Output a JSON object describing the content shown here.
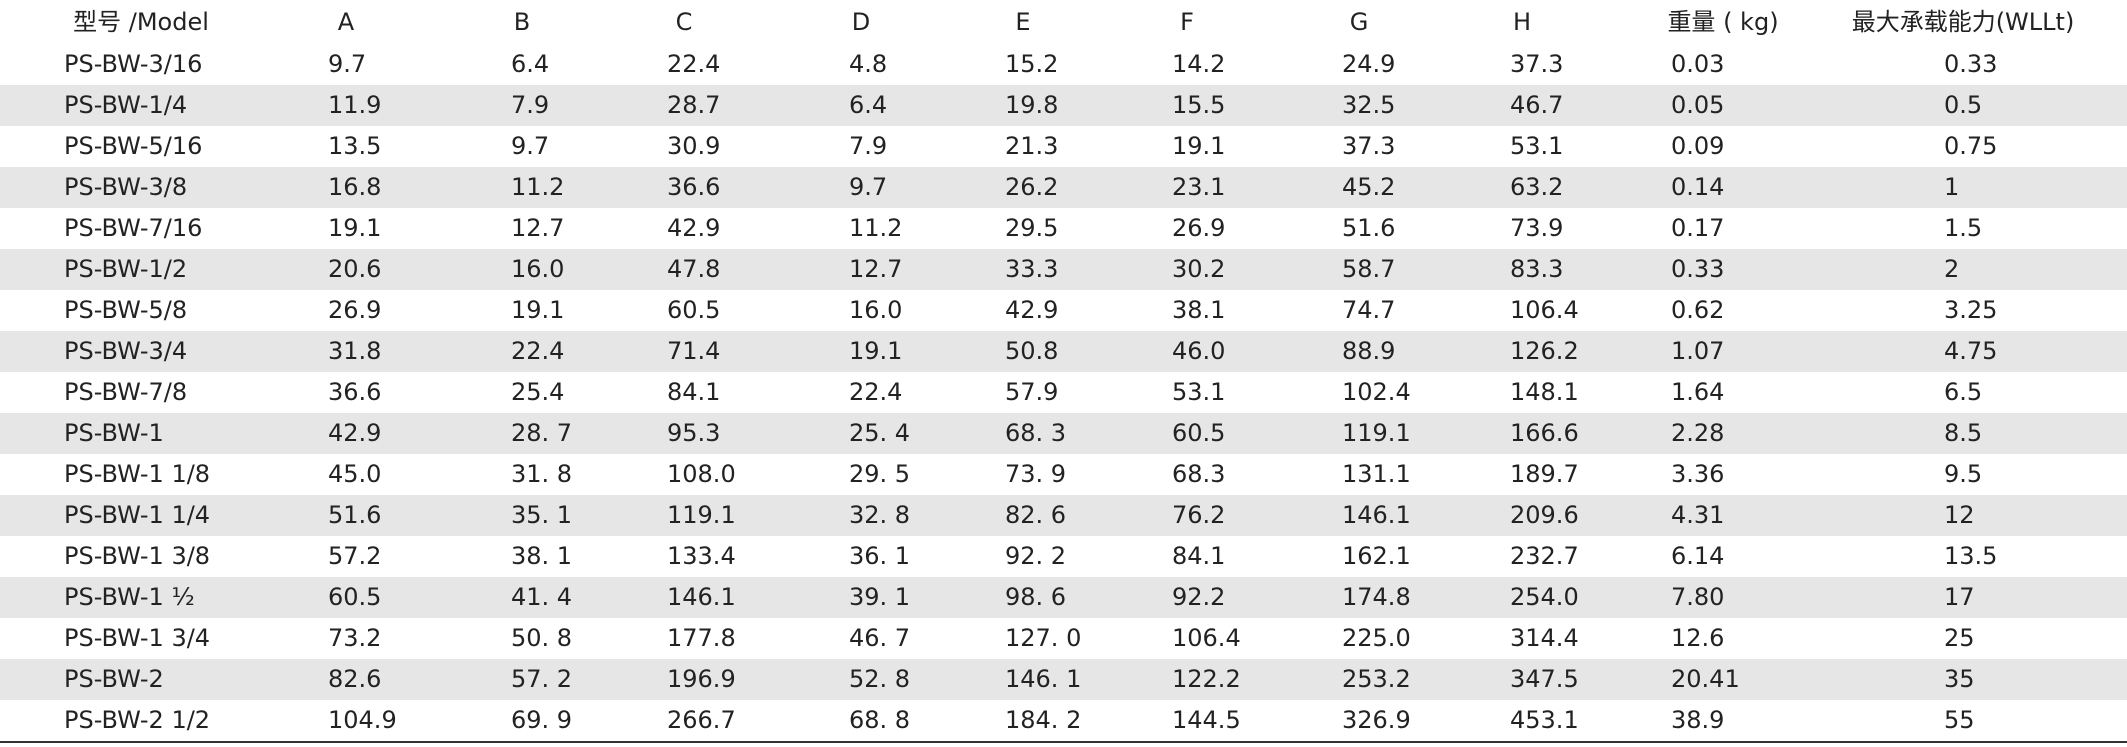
{
  "table": {
    "headers": [
      "型号 /Model",
      "A",
      "B",
      "C",
      "D",
      "E",
      "F",
      "G",
      "H",
      "重量 ( kg)",
      "最大承载能力(WLLt)"
    ],
    "rows": [
      [
        "PS-BW-3/16",
        "9.7",
        "6.4",
        "22.4",
        "4.8",
        "15.2",
        "14.2",
        "24.9",
        "37.3",
        "0.03",
        "0.33"
      ],
      [
        "PS-BW-1/4",
        "11.9",
        "7.9",
        "28.7",
        "6.4",
        "19.8",
        "15.5",
        "32.5",
        "46.7",
        "0.05",
        "0.5"
      ],
      [
        "PS-BW-5/16",
        "13.5",
        "9.7",
        "30.9",
        "7.9",
        "21.3",
        "19.1",
        "37.3",
        "53.1",
        "0.09",
        "0.75"
      ],
      [
        "PS-BW-3/8",
        "16.8",
        "11.2",
        "36.6",
        "9.7",
        "26.2",
        "23.1",
        "45.2",
        "63.2",
        "0.14",
        "1"
      ],
      [
        "PS-BW-7/16",
        "19.1",
        "12.7",
        "42.9",
        "11.2",
        "29.5",
        "26.9",
        "51.6",
        "73.9",
        "0.17",
        "1.5"
      ],
      [
        "PS-BW-1/2",
        "20.6",
        "16.0",
        "47.8",
        "12.7",
        "33.3",
        "30.2",
        "58.7",
        "83.3",
        "0.33",
        "2"
      ],
      [
        "PS-BW-5/8",
        "26.9",
        "19.1",
        "60.5",
        "16.0",
        "42.9",
        "38.1",
        "74.7",
        "106.4",
        "0.62",
        "3.25"
      ],
      [
        "PS-BW-3/4",
        "31.8",
        "22.4",
        "71.4",
        "19.1",
        "50.8",
        "46.0",
        "88.9",
        "126.2",
        "1.07",
        "4.75"
      ],
      [
        "PS-BW-7/8",
        "36.6",
        "25.4",
        "84.1",
        "22.4",
        "57.9",
        "53.1",
        "102.4",
        "148.1",
        "1.64",
        "6.5"
      ],
      [
        "PS-BW-1",
        "42.9",
        "28. 7",
        "95.3",
        "25. 4",
        "68. 3",
        "60.5",
        "119.1",
        "166.6",
        "2.28",
        "8.5"
      ],
      [
        "PS-BW-1 1/8",
        "45.0",
        "31. 8",
        "108.0",
        "29. 5",
        "73. 9",
        "68.3",
        "131.1",
        "189.7",
        "3.36",
        "9.5"
      ],
      [
        "PS-BW-1 1/4",
        "51.6",
        "35. 1",
        "119.1",
        "32. 8",
        "82. 6",
        "76.2",
        "146.1",
        "209.6",
        "4.31",
        "12"
      ],
      [
        "PS-BW-1 3/8",
        "57.2",
        "38. 1",
        "133.4",
        "36. 1",
        "92. 2",
        "84.1",
        "162.1",
        "232.7",
        "6.14",
        "13.5"
      ],
      [
        "PS-BW-1 ½",
        "60.5",
        "41. 4",
        "146.1",
        "39. 1",
        "98. 6",
        "92.2",
        "174.8",
        "254.0",
        "7.80",
        "17"
      ],
      [
        "PS-BW-1 3/4",
        "73.2",
        "50. 8",
        "177.8",
        "46. 7",
        "127. 0",
        "106.4",
        "225.0",
        "314.4",
        "12.6",
        "25"
      ],
      [
        "PS-BW-2",
        "82.6",
        "57. 2",
        "196.9",
        "52. 8",
        "146. 1",
        "122.2",
        "253.2",
        "347.5",
        "20.41",
        "35"
      ],
      [
        "PS-BW-2 1/2",
        "104.9",
        "69. 9",
        "266.7",
        "68. 8",
        "184. 2",
        "144.5",
        "326.9",
        "453.1",
        "38.9",
        "55"
      ]
    ]
  }
}
